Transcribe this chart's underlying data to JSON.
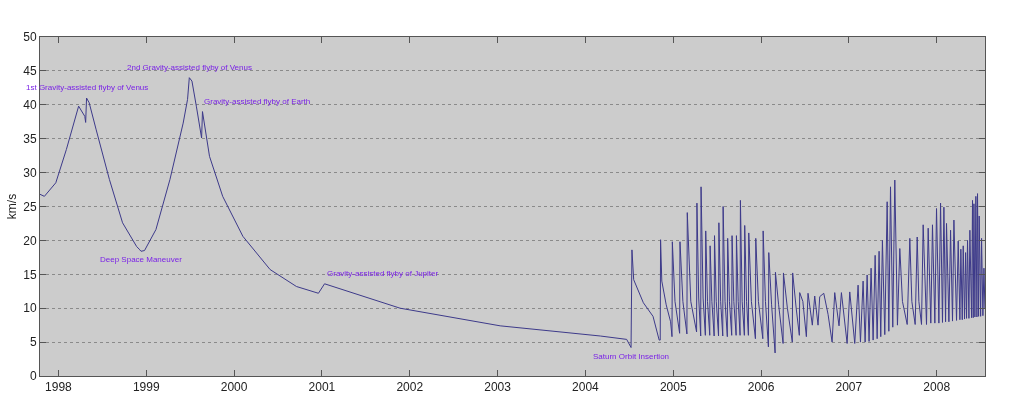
{
  "chart_data": {
    "type": "line",
    "ylabel": "km/s",
    "color": "#3d3a8a",
    "grid": "y",
    "xlim": [
      1997.79,
      2008.55
    ],
    "xticks": [
      1998,
      1999,
      2000,
      2001,
      2002,
      2003,
      2004,
      2005,
      2006,
      2007,
      2008
    ],
    "ylim": [
      0,
      50
    ],
    "yticks": [
      0,
      5,
      10,
      15,
      20,
      25,
      30,
      35,
      40,
      45,
      50
    ],
    "annotations": [
      {
        "text": "1st Gravity-assisted flyby of Venus",
        "x": 1998.32,
        "y": 41.0
      },
      {
        "text": "2nd Gravity-assisted flyby of Venus",
        "x": 1999.49,
        "y": 44.0
      },
      {
        "text": "Gravity-assisted flyby of Earth",
        "x": 1999.64,
        "y": 39.0
      },
      {
        "text": "Deep Space Maneuver",
        "x": 1998.94,
        "y": 18.4
      },
      {
        "text": "Gravity-assisted flyby of Jupiter",
        "x": 2001.03,
        "y": 13.6
      },
      {
        "text": "Saturn Orbit Insertion",
        "x": 2004.52,
        "y": 4.2
      }
    ],
    "x": [
      1997.79,
      1997.84,
      1997.97,
      1998.09,
      1998.23,
      1998.3,
      1998.31,
      1998.32,
      1998.35,
      1998.43,
      1998.58,
      1998.73,
      1998.89,
      1998.92,
      1998.94,
      1998.98,
      1999.11,
      1999.27,
      1999.42,
      1999.47,
      1999.49,
      1999.52,
      1999.57,
      1999.63,
      1999.64,
      1999.72,
      1999.87,
      2000.1,
      2000.41,
      2000.71,
      2000.96,
      2001.03,
      2001.89,
      2003.03,
      2004.17,
      2004.47,
      2004.52,
      2004.53,
      2004.55,
      2004.66,
      2004.77,
      2004.84,
      2004.852,
      2004.856,
      2004.87,
      2004.92,
      2004.97,
      2004.986,
      2004.99,
      2005.02,
      2005.073,
      2005.077,
      2005.11,
      2005.156,
      2005.16,
      2005.2,
      2005.266,
      2005.27,
      2005.29,
      2005.313,
      2005.317,
      2005.34,
      2005.366,
      2005.37,
      2005.39,
      2005.416,
      2005.42,
      2005.44,
      2005.466,
      2005.47,
      2005.49,
      2005.516,
      2005.52,
      2005.54,
      2005.564,
      2005.568,
      2005.59,
      2005.616,
      2005.62,
      2005.64,
      2005.666,
      2005.67,
      2005.69,
      2005.716,
      2005.72,
      2005.74,
      2005.761,
      2005.765,
      2005.785,
      2005.81,
      2005.814,
      2005.835,
      2005.856,
      2005.86,
      2005.89,
      2005.936,
      2005.94,
      2005.97,
      2006.02,
      2006.024,
      2006.05,
      2006.084,
      2006.088,
      2006.12,
      2006.16,
      2006.164,
      2006.2,
      2006.251,
      2006.255,
      2006.3,
      2006.356,
      2006.36,
      2006.4,
      2006.436,
      2006.44,
      2006.476,
      2006.516,
      2006.535,
      2006.584,
      2006.611,
      2006.649,
      2006.668,
      2006.714,
      2006.763,
      2006.809,
      2006.839,
      2006.888,
      2006.915,
      2006.98,
      2007.01,
      2007.067,
      2007.105,
      2007.132,
      2007.162,
      2007.185,
      2007.208,
      2007.23,
      2007.253,
      2007.276,
      2007.299,
      2007.322,
      2007.344,
      2007.363,
      2007.382,
      2007.409,
      2007.436,
      2007.455,
      2007.474,
      2007.5,
      2007.523,
      2007.553,
      2007.58,
      2007.61,
      2007.664,
      2007.694,
      2007.717,
      2007.755,
      2007.778,
      2007.797,
      2007.827,
      2007.846,
      2007.884,
      2007.903,
      2007.933,
      2007.952,
      2007.979,
      2007.998,
      2008.025,
      2008.044,
      2008.066,
      2008.082,
      2008.101,
      2008.112,
      2008.139,
      2008.158,
      2008.18,
      2008.196,
      2008.226,
      2008.245,
      2008.264,
      2008.275,
      2008.291,
      2008.302,
      2008.317,
      2008.329,
      2008.34,
      2008.351,
      2008.367,
      2008.378,
      2008.397,
      2008.408,
      2008.416,
      2008.424,
      2008.435,
      2008.446,
      2008.458,
      2008.465,
      2008.477,
      2008.484,
      2008.5,
      2008.511,
      2008.526,
      2008.538,
      2008.549
    ],
    "values": [
      26.8,
      26.5,
      28.5,
      33.4,
      39.8,
      38.3,
      37.4,
      41.0,
      40.3,
      36.3,
      29.0,
      22.6,
      19.1,
      18.7,
      18.4,
      18.5,
      21.6,
      29.0,
      37.3,
      40.8,
      44.0,
      43.5,
      39.8,
      35.1,
      39.0,
      32.4,
      26.5,
      20.6,
      15.7,
      13.2,
      12.2,
      13.6,
      10.0,
      7.4,
      5.9,
      5.4,
      4.2,
      18.6,
      14.2,
      10.8,
      8.8,
      5.3,
      5.3,
      20.1,
      14.0,
      10.5,
      8.0,
      5.8,
      19.8,
      11.0,
      6.3,
      19.8,
      11.0,
      6.2,
      24.1,
      11.0,
      6.5,
      25.5,
      11.5,
      5.9,
      27.9,
      11.5,
      6.0,
      21.4,
      11.0,
      6.0,
      19.2,
      11.0,
      5.9,
      20.7,
      11.0,
      5.9,
      22.6,
      11.0,
      5.9,
      25.0,
      11.0,
      5.8,
      20.3,
      11.0,
      6.0,
      20.7,
      11.0,
      6.0,
      20.7,
      11.0,
      6.0,
      25.9,
      11.0,
      6.0,
      22.2,
      11.0,
      6.0,
      21.1,
      11.0,
      5.5,
      20.3,
      11.0,
      5.5,
      21.4,
      11.0,
      4.3,
      18.2,
      10.5,
      3.4,
      15.3,
      10.5,
      4.8,
      15.2,
      10.0,
      5.0,
      15.2,
      10.0,
      6.0,
      12.3,
      11.0,
      5.8,
      12.2,
      7.5,
      11.8,
      7.5,
      11.7,
      12.2,
      9.1,
      5.0,
      12.3,
      7.4,
      12.3,
      4.8,
      12.4,
      4.8,
      13.4,
      5.0,
      14.0,
      5.0,
      14.9,
      5.1,
      15.9,
      5.3,
      17.8,
      5.5,
      18.4,
      5.8,
      20.0,
      6.1,
      25.7,
      6.6,
      27.9,
      7.2,
      28.9,
      7.5,
      18.8,
      11.0,
      7.6,
      20.3,
      11.0,
      7.6,
      20.5,
      11.0,
      7.6,
      22.3,
      7.6,
      21.8,
      7.8,
      22.3,
      7.8,
      24.7,
      7.8,
      25.5,
      7.9,
      24.9,
      8.0,
      22.5,
      8.0,
      21.5,
      8.1,
      23.0,
      8.2,
      19.9,
      8.3,
      18.7,
      8.3,
      19.2,
      8.4,
      18.2,
      8.5,
      20.0,
      8.5,
      21.5,
      8.6,
      25.9,
      8.6,
      25.4,
      8.7,
      26.5,
      8.7,
      26.9,
      8.8,
      23.6,
      8.8,
      20.3,
      8.9,
      15.9,
      10.0
    ]
  }
}
